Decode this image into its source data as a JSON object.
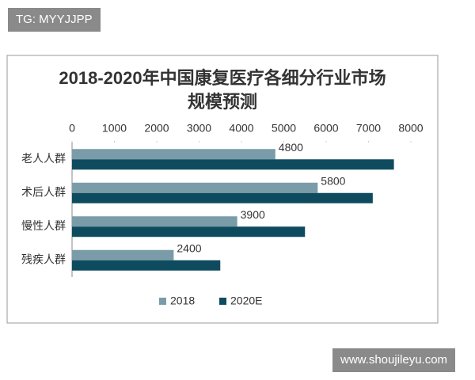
{
  "watermarks": {
    "top": "TG: MYYJJPP",
    "bottom": "www.shoujileyu.com"
  },
  "chart_data": {
    "type": "hbar",
    "title": "2018-2020年中国康复医疗各细分行业市场规模预测",
    "categories": [
      "老人人群",
      "术后人群",
      "慢性人群",
      "残疾人群"
    ],
    "series": [
      {
        "name": "2018",
        "color": "#7a9ca9",
        "values": [
          4800,
          5800,
          3900,
          2400
        ],
        "data_labels": true
      },
      {
        "name": "2020E",
        "color": "#0f4b5f",
        "values": [
          7600,
          7100,
          5500,
          3500
        ],
        "data_labels": false
      }
    ],
    "xlim": [
      0,
      8000
    ],
    "xticks": [
      0,
      1000,
      2000,
      3000,
      4000,
      5000,
      6000,
      7000,
      8000
    ],
    "grid": false,
    "legend": "bottom"
  }
}
